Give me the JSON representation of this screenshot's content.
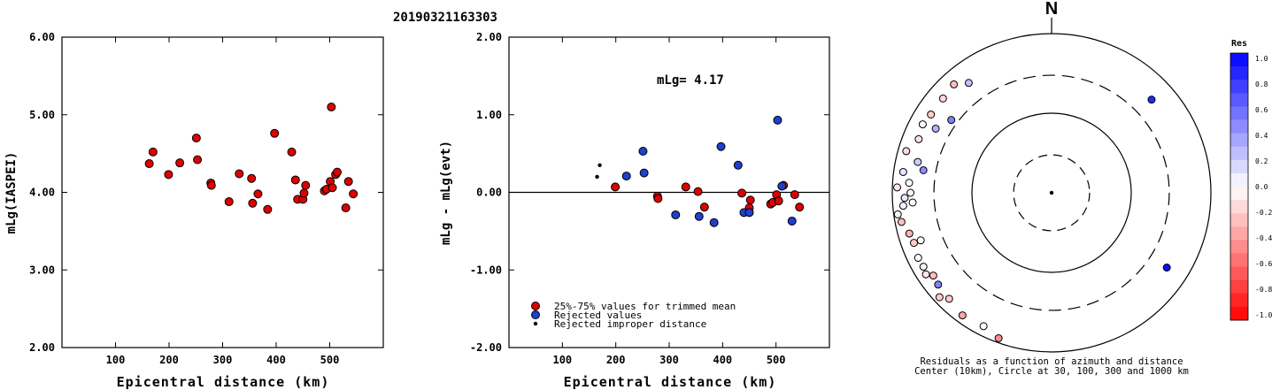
{
  "figure": {
    "event_id": "20190321163303"
  },
  "chart_data": [
    {
      "type": "scatter",
      "xlabel": "Epicentral distance (km)",
      "ylabel": "mLg(IASPEI)",
      "xlim": [
        0,
        600
      ],
      "ylim": [
        2.0,
        6.0
      ],
      "x_ticks": [
        100,
        200,
        300,
        400,
        500
      ],
      "y_ticks": [
        "2.00",
        "3.00",
        "4.00",
        "5.00",
        "6.00"
      ],
      "series": [
        {
          "color": "#dd0000",
          "points": [
            [
              163,
              4.37
            ],
            [
              170,
              4.52
            ],
            [
              199,
              4.23
            ],
            [
              220,
              4.38
            ],
            [
              251,
              4.7
            ],
            [
              253,
              4.42
            ],
            [
              278,
              4.12
            ],
            [
              279,
              4.09
            ],
            [
              312,
              3.88
            ],
            [
              331,
              4.24
            ],
            [
              354,
              4.18
            ],
            [
              356,
              3.86
            ],
            [
              366,
              3.98
            ],
            [
              384,
              3.78
            ],
            [
              397,
              4.76
            ],
            [
              429,
              4.52
            ],
            [
              436,
              4.16
            ],
            [
              440,
              3.91
            ],
            [
              450,
              3.91
            ],
            [
              452,
              3.99
            ],
            [
              455,
              4.09
            ],
            [
              490,
              4.02
            ],
            [
              494,
              4.04
            ],
            [
              501,
              4.14
            ],
            [
              503,
              5.1
            ],
            [
              505,
              4.06
            ],
            [
              511,
              4.23
            ],
            [
              514,
              4.26
            ],
            [
              530,
              3.8
            ],
            [
              535,
              4.14
            ],
            [
              544,
              3.98
            ]
          ]
        }
      ]
    },
    {
      "type": "scatter",
      "xlabel": "Epicentral distance (km)",
      "ylabel": "mLg - mLg(evt)",
      "xlim": [
        0,
        600
      ],
      "ylim": [
        -2.0,
        2.0
      ],
      "x_ticks": [
        100,
        200,
        300,
        400,
        500
      ],
      "y_ticks": [
        "-2.00",
        "-1.00",
        "0.00",
        "1.00",
        "2.00"
      ],
      "reference_line": 0,
      "annotation": "mLg= 4.17",
      "legend": [
        {
          "label": "25%-75% values for trimmed mean",
          "color": "#dd0000",
          "marker": "circle"
        },
        {
          "label": "Rejected values",
          "color": "#1f3fd0",
          "marker": "circle"
        },
        {
          "label": "Rejected improper distance",
          "color": "#000000",
          "marker": "dot"
        }
      ],
      "series": [
        {
          "name": "25%-75% values for trimmed mean",
          "color": "#dd0000",
          "points": [
            [
              199,
              0.07
            ],
            [
              278,
              -0.05
            ],
            [
              279,
              -0.08
            ],
            [
              331,
              0.07
            ],
            [
              354,
              0.01
            ],
            [
              366,
              -0.19
            ],
            [
              436,
              -0.01
            ],
            [
              450,
              -0.2
            ],
            [
              452,
              -0.1
            ],
            [
              490,
              -0.15
            ],
            [
              494,
              -0.13
            ],
            [
              501,
              -0.03
            ],
            [
              505,
              -0.11
            ],
            [
              514,
              0.09
            ],
            [
              535,
              -0.03
            ],
            [
              544,
              -0.19
            ]
          ]
        },
        {
          "name": "Rejected values",
          "color": "#1f3fd0",
          "points": [
            [
              220,
              0.21
            ],
            [
              251,
              0.53
            ],
            [
              253,
              0.25
            ],
            [
              312,
              -0.29
            ],
            [
              356,
              -0.31
            ],
            [
              384,
              -0.39
            ],
            [
              397,
              0.59
            ],
            [
              429,
              0.35
            ],
            [
              440,
              -0.26
            ],
            [
              450,
              -0.26
            ],
            [
              503,
              0.93
            ],
            [
              511,
              0.08
            ],
            [
              530,
              -0.37
            ]
          ]
        },
        {
          "name": "Rejected improper distance",
          "color": "#000000",
          "points": [
            [
              165,
              0.2
            ],
            [
              170,
              0.35
            ]
          ]
        }
      ]
    },
    {
      "type": "polar",
      "north_label": "N",
      "caption_line1": "Residuals as a function of azimuth and distance",
      "caption_line2": "Center (10km), Circle at 30, 100, 300 and 1000 km",
      "rings_km": [
        30,
        100,
        300,
        1000
      ],
      "colorbar": {
        "title": "Res",
        "ticks": [
          "1.0",
          "0.8",
          "0.6",
          "0.4",
          "0.2",
          "0.0",
          "-0.2",
          "-0.4",
          "-0.6",
          "-0.8",
          "-1.0"
        ],
        "min": -1.0,
        "max": 1.0
      },
      "stations": [
        {
          "azimuth": 47,
          "distance_km": 520,
          "res": 0.85
        },
        {
          "azimuth": 123,
          "distance_km": 530,
          "res": 0.95
        },
        {
          "azimuth": 323,
          "distance_km": 535,
          "res": 0.25
        },
        {
          "azimuth": 318,
          "distance_km": 680,
          "res": -0.25
        },
        {
          "azimuth": 311,
          "distance_km": 640,
          "res": -0.15
        },
        {
          "azimuth": 303,
          "distance_km": 640,
          "res": -0.2
        },
        {
          "azimuth": 298,
          "distance_km": 680,
          "res": 0.0
        },
        {
          "azimuth": 306,
          "distance_km": 360,
          "res": 0.5
        },
        {
          "azimuth": 299,
          "distance_km": 460,
          "res": 0.3
        },
        {
          "azimuth": 292,
          "distance_km": 630,
          "res": -0.1
        },
        {
          "azimuth": 286,
          "distance_km": 790,
          "res": -0.15
        },
        {
          "azimuth": 283,
          "distance_km": 530,
          "res": 0.2
        },
        {
          "azimuth": 280,
          "distance_km": 430,
          "res": 0.45
        },
        {
          "azimuth": 278,
          "distance_km": 760,
          "res": 0.1
        },
        {
          "azimuth": 274,
          "distance_km": 620,
          "res": 0.0
        },
        {
          "azimuth": 272,
          "distance_km": 870,
          "res": -0.1
        },
        {
          "azimuth": 270,
          "distance_km": 590,
          "res": -0.05
        },
        {
          "azimuth": 268,
          "distance_km": 700,
          "res": 0.1
        },
        {
          "azimuth": 266,
          "distance_km": 560,
          "res": 0.0
        },
        {
          "azimuth": 265,
          "distance_km": 740,
          "res": 0.05
        },
        {
          "azimuth": 262,
          "distance_km": 890,
          "res": 0.0
        },
        {
          "azimuth": 259,
          "distance_km": 830,
          "res": -0.25
        },
        {
          "azimuth": 254,
          "distance_km": 720,
          "res": -0.3
        },
        {
          "azimuth": 250,
          "distance_km": 560,
          "res": 0.0
        },
        {
          "azimuth": 250,
          "distance_km": 690,
          "res": -0.2
        },
        {
          "azimuth": 244,
          "distance_km": 730,
          "res": 0.0
        },
        {
          "azimuth": 240,
          "distance_km": 720,
          "res": 0.05
        },
        {
          "azimuth": 237,
          "distance_km": 760,
          "res": -0.1
        },
        {
          "azimuth": 235,
          "distance_km": 650,
          "res": -0.25
        },
        {
          "azimuth": 231,
          "distance_km": 680,
          "res": 0.5
        },
        {
          "azimuth": 227,
          "distance_km": 840,
          "res": -0.2
        },
        {
          "azimuth": 224,
          "distance_km": 710,
          "res": -0.2
        },
        {
          "azimuth": 216,
          "distance_km": 800,
          "res": -0.35
        },
        {
          "azimuth": 207,
          "distance_km": 760,
          "res": 0.0
        },
        {
          "azimuth": 200,
          "distance_km": 880,
          "res": -0.45
        }
      ]
    }
  ]
}
